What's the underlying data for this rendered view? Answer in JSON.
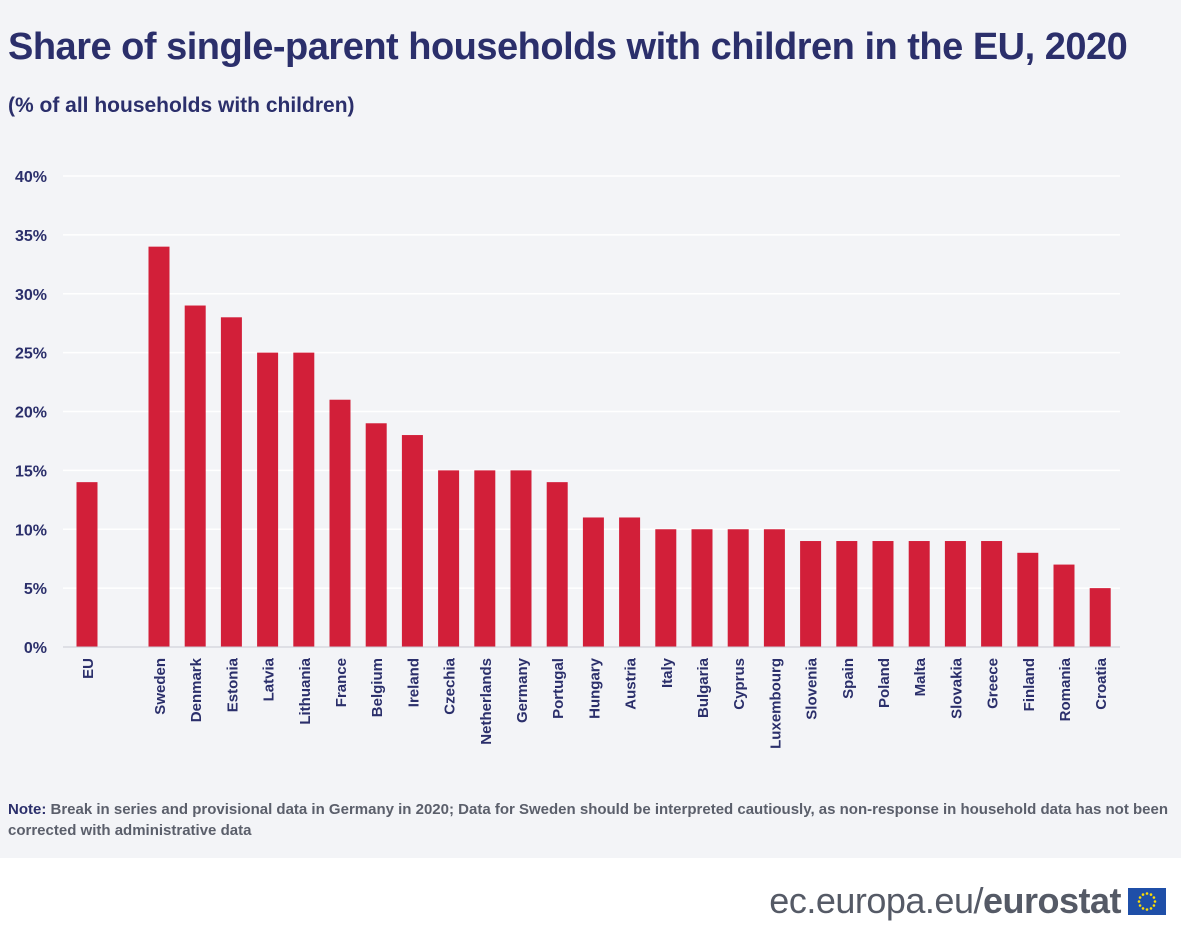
{
  "title": "Share of single-parent households with children in the EU, 2020",
  "subtitle": "(% of all households with children)",
  "note": {
    "label": "Note:",
    "text": "Break in series and provisional data in Germany in 2020; Data for Sweden should be interpreted cautiously, as non-response in household data has not been corrected with administrative data"
  },
  "footer": {
    "domain": "ec.europa.eu/",
    "brand": "eurostat"
  },
  "colors": {
    "bar": "#d21f39",
    "text": "#2b2f6b",
    "background": "#f3f4f7",
    "grid": "#ffffff",
    "flag": "#1f4fa8",
    "flag_stars": "#ffdd00"
  },
  "chart_data": {
    "type": "bar",
    "categories": [
      "EU",
      "Sweden",
      "Denmark",
      "Estonia",
      "Latvia",
      "Lithuania",
      "France",
      "Belgium",
      "Ireland",
      "Czechia",
      "Netherlands",
      "Germany",
      "Portugal",
      "Hungary",
      "Austria",
      "Italy",
      "Bulgaria",
      "Cyprus",
      "Luxembourg",
      "Slovenia",
      "Spain",
      "Poland",
      "Malta",
      "Slovakia",
      "Greece",
      "Finland",
      "Romania",
      "Croatia"
    ],
    "values": [
      14,
      34,
      29,
      28,
      25,
      25,
      21,
      19,
      18,
      15,
      15,
      15,
      14,
      11,
      11,
      10,
      10,
      10,
      10,
      9,
      9,
      9,
      9,
      9,
      9,
      8,
      7,
      5
    ],
    "ylim": [
      0,
      40
    ],
    "yticks": [
      0,
      5,
      10,
      15,
      20,
      25,
      30,
      35,
      40
    ],
    "ytick_labels": [
      "0%",
      "5%",
      "10%",
      "15%",
      "20%",
      "25%",
      "30%",
      "35%",
      "40%"
    ],
    "grid": true,
    "legend": "none"
  }
}
